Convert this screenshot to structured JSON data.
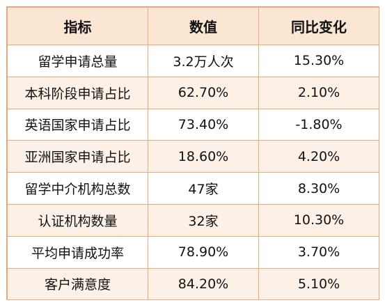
{
  "headers": [
    "指标",
    "数值",
    "同比变化"
  ],
  "rows": [
    [
      "留学申请总量",
      "3.2万人次",
      "15.30%"
    ],
    [
      "本科阶段申请占比",
      "62.70%",
      "2.10%"
    ],
    [
      "英语国家申请占比",
      "73.40%",
      "-1.80%"
    ],
    [
      "亚洲国家申请占比",
      "18.60%",
      "4.20%"
    ],
    [
      "留学中介机构总数",
      "47家",
      "8.30%"
    ],
    [
      "认证机构数量",
      "32家",
      "10.30%"
    ],
    [
      "平均申请成功率",
      "78.90%",
      "3.70%"
    ],
    [
      "客户满意度",
      "84.20%",
      "5.10%"
    ]
  ],
  "colors": {
    "border": "#e8a878",
    "header_bg": "#fbe6d4",
    "stripe_bg": "#fdf1e7",
    "text": "#111111"
  }
}
